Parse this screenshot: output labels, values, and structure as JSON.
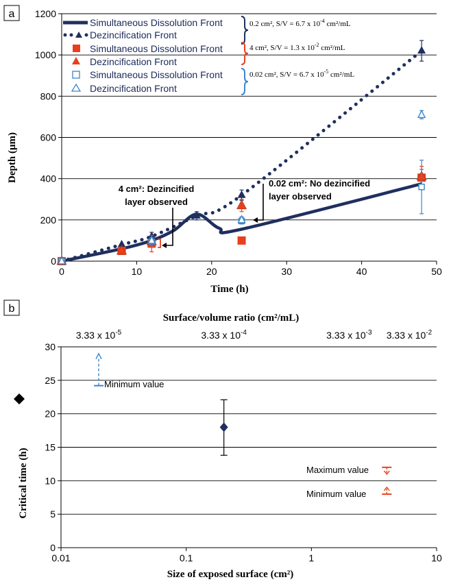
{
  "panel_a_label": "a",
  "panel_b_label": "b",
  "legend": {
    "groups": [
      {
        "note": "0.2 cm², S/V = 6.7 x 10",
        "note_exp": "-4",
        "note_tail": " cm²/mL",
        "entries": [
          "Simultaneous Dissolution Front",
          "Dezincification Front"
        ],
        "color": "#1f2f5f"
      },
      {
        "note": "4 cm², S/V = 1.3 x 10",
        "note_exp": "-2",
        "note_tail": " cm²/mL",
        "entries": [
          "Simultaneous Dissolution Front",
          "Dezincification Front"
        ],
        "color": "#e8401c"
      },
      {
        "note": "0.02 cm², S/V = 6.7 x 10",
        "note_exp": "-5",
        "note_tail": " cm²/mL",
        "entries": [
          "Simultaneous Dissolution Front",
          "Dezincification Front"
        ],
        "color": "#3a86c8"
      }
    ]
  },
  "callouts": {
    "c4_line1": "4 cm²: Dezincified",
    "c4_line2": "layer observed",
    "c002_line1": "0.02 cm²: No dezincified",
    "c002_line2": "layer observed"
  },
  "annotations_b": {
    "minimum": "Minimum value",
    "maximum": "Maximum value",
    "minimum2": "Minimum value"
  },
  "colors": {
    "navy": "#1f2f5f",
    "red": "#e8401c",
    "blue": "#3a86c8",
    "grid": "#000000"
  },
  "chart_data": [
    {
      "type": "line",
      "xlabel": "Time (h)",
      "ylabel": "Depth (μm)",
      "xlim": [
        0,
        50
      ],
      "ylim": [
        0,
        1200
      ],
      "xticks": [
        0,
        10,
        20,
        30,
        40,
        50
      ],
      "yticks": [
        0,
        200,
        400,
        600,
        800,
        1000,
        1200
      ],
      "grid": "horizontal",
      "legend_position": "top-left",
      "series": [
        {
          "name": "Simultaneous Dissolution Front",
          "group": "0.2 cm²",
          "style": "solid-line",
          "x": [
            0,
            8,
            12,
            15,
            18,
            21,
            24,
            48
          ],
          "y": [
            0,
            60,
            100,
            150,
            228,
            160,
            155,
            375
          ]
        },
        {
          "name": "Dezincification Front",
          "group": "0.2 cm²",
          "style": "dotted-line",
          "x": [
            0,
            8,
            12,
            18,
            24,
            48
          ],
          "y": [
            0,
            80,
            120,
            220,
            320,
            1020
          ],
          "errors": [
            0,
            0,
            20,
            20,
            25,
            50
          ]
        },
        {
          "name": "Simultaneous Dissolution Front",
          "group": "4 cm²",
          "style": "square",
          "x": [
            0,
            8,
            12,
            24,
            48
          ],
          "y": [
            0,
            50,
            85,
            100,
            405
          ],
          "errors": [
            0,
            0,
            40,
            0,
            40
          ]
        },
        {
          "name": "Dezincification Front",
          "group": "4 cm²",
          "style": "triangle",
          "x": [
            0,
            8,
            12,
            24,
            48
          ],
          "y": [
            0,
            50,
            95,
            270,
            410
          ],
          "errors": [
            0,
            0,
            0,
            30,
            50
          ]
        },
        {
          "name": "Simultaneous Dissolution Front",
          "group": "0.02 cm²",
          "style": "open-square",
          "x": [
            0,
            12,
            24,
            48
          ],
          "y": [
            0,
            95,
            195,
            360
          ],
          "errors": [
            0,
            20,
            15,
            130
          ]
        },
        {
          "name": "Dezincification Front",
          "group": "0.02 cm²",
          "style": "open-triangle",
          "x": [
            0,
            12,
            24,
            48
          ],
          "y": [
            0,
            100,
            200,
            710
          ],
          "errors": [
            0,
            15,
            15,
            20
          ]
        }
      ]
    },
    {
      "type": "scatter",
      "xlabel": "Size of exposed surface (cm²)",
      "x2label": "Surface/volume ratio (cm²/mL)",
      "ylabel": "Critical time (h)",
      "xscale": "log",
      "xlim": [
        0.01,
        10
      ],
      "ylim": [
        0,
        30
      ],
      "xticks": [
        "0.01",
        "0.1",
        "1",
        "10"
      ],
      "x2ticks": [
        {
          "base": "3.33 x 10",
          "exp": "-5"
        },
        {
          "base": "3.33 x 10",
          "exp": "-4"
        },
        {
          "base": "3.33 x 10",
          "exp": "-3"
        },
        {
          "base": "3.33 x 10",
          "exp": "-2"
        }
      ],
      "yticks": [
        0,
        5,
        10,
        15,
        20,
        25,
        30
      ],
      "grid": "horizontal",
      "points": [
        {
          "x": 0.2,
          "y": 18,
          "err_low": 13.8,
          "err_high": 22.1,
          "marker": "diamond"
        },
        {
          "x": 0.02,
          "y": 24.2,
          "kind": "minimum-bound",
          "arrow_to": 29
        },
        {
          "x": 4,
          "y_max": 12,
          "y_min": 8,
          "kind": "range-bounds"
        }
      ]
    }
  ]
}
